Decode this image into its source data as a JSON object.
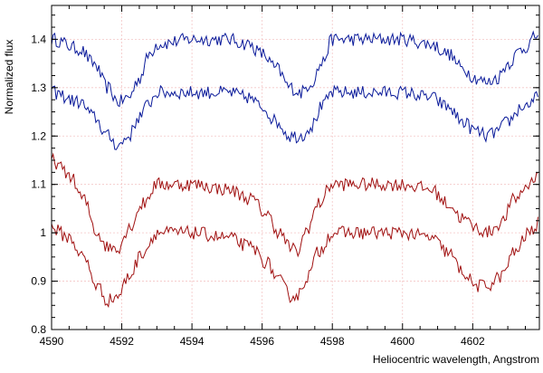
{
  "chart_data": {
    "type": "line",
    "xlabel": "Heliocentric wavelength, Angstrom",
    "ylabel": "Normalized flux",
    "xlim": [
      4590,
      4603.9
    ],
    "ylim": [
      0.8,
      1.47
    ],
    "xticks": [
      4590,
      4592,
      4594,
      4596,
      4598,
      4600,
      4602
    ],
    "xtick_labels": [
      "4590",
      "4592",
      "4594",
      "4596",
      "4598",
      "4600",
      "4602"
    ],
    "yticks": [
      0.8,
      0.9,
      1.0,
      1.1,
      1.2,
      1.3,
      1.4
    ],
    "ytick_labels": [
      "0.8",
      "0.9",
      "1",
      "1.1",
      "1.2",
      "1.3",
      "1.4"
    ],
    "grid": true,
    "series_colors": [
      "#0a1a9a",
      "#0a1a9a",
      "#a01010",
      "#a01010"
    ],
    "grid_color": "#f4c6c6",
    "series": [
      {
        "x": [
          4590.0,
          4590.8,
          4591.2,
          4591.6,
          4591.9,
          4592.2,
          4592.5,
          4592.8,
          4593.0,
          4594.0,
          4595.0,
          4595.6,
          4596.0,
          4596.4,
          4596.8,
          4597.1,
          4597.4,
          4597.7,
          4598.0,
          4599.0,
          4600.0,
          4600.8,
          4601.3,
          4601.7,
          4602.1,
          4602.4,
          4602.7,
          4603.0,
          4603.4,
          4603.9
        ],
        "y": [
          1.4,
          1.38,
          1.35,
          1.3,
          1.27,
          1.28,
          1.32,
          1.37,
          1.39,
          1.4,
          1.4,
          1.39,
          1.37,
          1.34,
          1.3,
          1.29,
          1.31,
          1.35,
          1.4,
          1.4,
          1.4,
          1.39,
          1.37,
          1.34,
          1.32,
          1.31,
          1.32,
          1.35,
          1.38,
          1.41
        ]
      },
      {
        "x": [
          4590.0,
          4590.8,
          4591.2,
          4591.6,
          4591.9,
          4592.2,
          4592.5,
          4592.8,
          4593.0,
          4594.0,
          4595.0,
          4595.6,
          4596.0,
          4596.4,
          4596.8,
          4597.1,
          4597.4,
          4597.7,
          4598.0,
          4599.0,
          4600.0,
          4600.8,
          4601.3,
          4601.7,
          4602.1,
          4602.4,
          4602.7,
          4603.0,
          4603.4,
          4603.9
        ],
        "y": [
          1.29,
          1.27,
          1.24,
          1.2,
          1.18,
          1.2,
          1.24,
          1.27,
          1.29,
          1.29,
          1.29,
          1.28,
          1.26,
          1.23,
          1.2,
          1.2,
          1.22,
          1.26,
          1.29,
          1.29,
          1.29,
          1.28,
          1.26,
          1.23,
          1.21,
          1.2,
          1.21,
          1.23,
          1.26,
          1.28
        ]
      },
      {
        "x": [
          4590.0,
          4590.5,
          4590.9,
          4591.3,
          4591.6,
          4591.9,
          4592.2,
          4592.6,
          4593.0,
          4593.5,
          4594.0,
          4595.0,
          4595.7,
          4596.1,
          4596.5,
          4596.8,
          4597.0,
          4597.3,
          4597.6,
          4598.0,
          4599.0,
          4600.0,
          4600.8,
          4601.3,
          4601.7,
          4602.1,
          4602.4,
          4602.8,
          4603.2,
          4603.6,
          4603.9
        ],
        "y": [
          1.15,
          1.12,
          1.07,
          1.0,
          0.97,
          0.97,
          1.01,
          1.06,
          1.1,
          1.1,
          1.1,
          1.09,
          1.07,
          1.04,
          1.0,
          0.97,
          0.96,
          1.01,
          1.06,
          1.1,
          1.1,
          1.1,
          1.09,
          1.06,
          1.03,
          1.01,
          1.0,
          1.02,
          1.07,
          1.1,
          1.13
        ]
      },
      {
        "x": [
          4590.0,
          4590.5,
          4590.9,
          4591.3,
          4591.6,
          4591.9,
          4592.2,
          4592.6,
          4593.0,
          4593.5,
          4594.0,
          4595.0,
          4595.7,
          4596.1,
          4596.5,
          4596.8,
          4597.0,
          4597.3,
          4597.6,
          4598.0,
          4599.0,
          4600.0,
          4600.8,
          4601.3,
          4601.7,
          4602.1,
          4602.4,
          4602.8,
          4603.2,
          4603.6,
          4603.9
        ],
        "y": [
          1.01,
          0.99,
          0.95,
          0.89,
          0.86,
          0.87,
          0.91,
          0.96,
          1.0,
          1.0,
          1.0,
          0.99,
          0.97,
          0.94,
          0.9,
          0.87,
          0.87,
          0.91,
          0.96,
          1.0,
          1.0,
          1.0,
          0.99,
          0.96,
          0.92,
          0.89,
          0.89,
          0.91,
          0.96,
          1.0,
          1.02
        ]
      }
    ]
  }
}
